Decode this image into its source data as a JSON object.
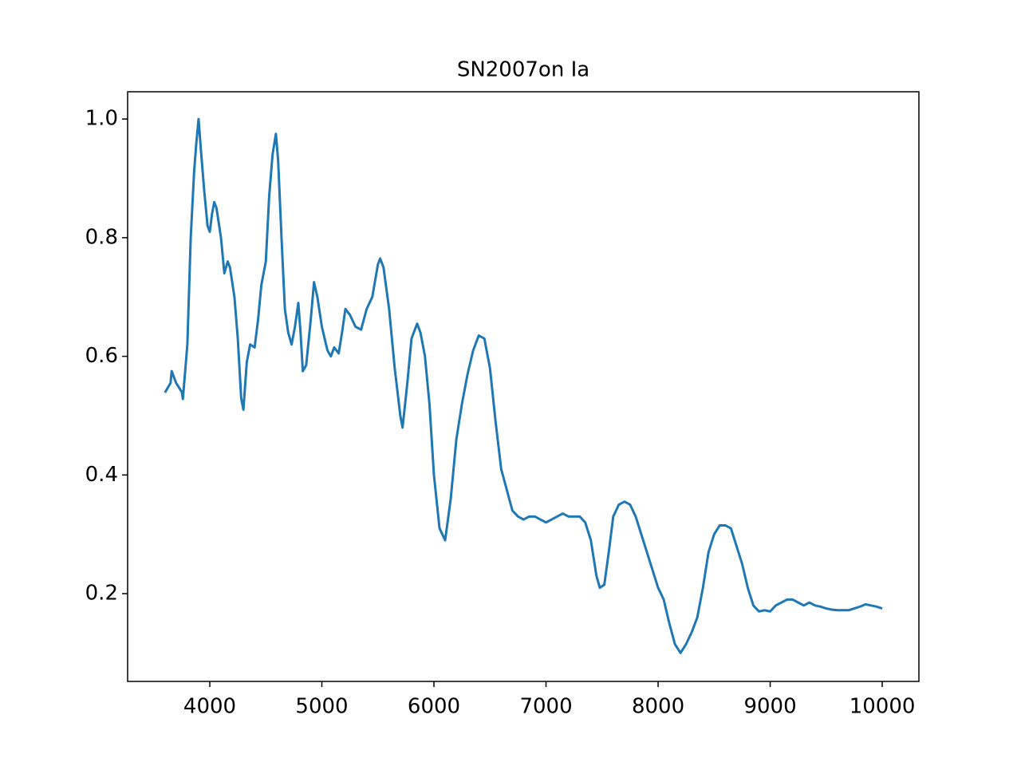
{
  "chart_data": {
    "type": "line",
    "title": "SN2007on Ia",
    "x": [
      3600,
      3650,
      3660,
      3700,
      3750,
      3760,
      3800,
      3830,
      3860,
      3880,
      3900,
      3920,
      3950,
      3980,
      4000,
      4020,
      4040,
      4060,
      4100,
      4130,
      4160,
      4180,
      4220,
      4250,
      4280,
      4300,
      4330,
      4360,
      4400,
      4430,
      4460,
      4500,
      4530,
      4560,
      4590,
      4610,
      4640,
      4670,
      4700,
      4730,
      4760,
      4790,
      4810,
      4830,
      4860,
      4900,
      4930,
      4960,
      5000,
      5050,
      5080,
      5110,
      5150,
      5180,
      5210,
      5250,
      5300,
      5350,
      5400,
      5450,
      5500,
      5520,
      5550,
      5600,
      5650,
      5700,
      5720,
      5760,
      5800,
      5850,
      5880,
      5920,
      5960,
      6000,
      6050,
      6100,
      6150,
      6200,
      6250,
      6300,
      6350,
      6400,
      6450,
      6500,
      6550,
      6600,
      6650,
      6700,
      6750,
      6800,
      6850,
      6900,
      6950,
      7000,
      7050,
      7100,
      7150,
      7200,
      7250,
      7300,
      7350,
      7400,
      7450,
      7480,
      7520,
      7560,
      7600,
      7650,
      7700,
      7750,
      7800,
      7850,
      7900,
      7950,
      8000,
      8050,
      8100,
      8150,
      8200,
      8250,
      8300,
      8350,
      8400,
      8450,
      8500,
      8550,
      8600,
      8650,
      8700,
      8750,
      8800,
      8850,
      8900,
      8950,
      9000,
      9050,
      9100,
      9150,
      9200,
      9250,
      9300,
      9350,
      9400,
      9450,
      9500,
      9550,
      9600,
      9700,
      9800,
      9850,
      9900,
      9950,
      10000
    ],
    "series": [
      {
        "color": "#1f77b4",
        "values": [
          0.539,
          0.555,
          0.575,
          0.555,
          0.54,
          0.528,
          0.62,
          0.8,
          0.91,
          0.96,
          1.0,
          0.95,
          0.88,
          0.82,
          0.81,
          0.84,
          0.86,
          0.85,
          0.8,
          0.74,
          0.76,
          0.75,
          0.7,
          0.63,
          0.53,
          0.51,
          0.59,
          0.62,
          0.615,
          0.66,
          0.72,
          0.76,
          0.87,
          0.94,
          0.975,
          0.93,
          0.8,
          0.68,
          0.64,
          0.62,
          0.65,
          0.69,
          0.64,
          0.575,
          0.585,
          0.66,
          0.725,
          0.7,
          0.65,
          0.61,
          0.6,
          0.615,
          0.605,
          0.64,
          0.68,
          0.67,
          0.65,
          0.645,
          0.68,
          0.7,
          0.755,
          0.765,
          0.75,
          0.68,
          0.58,
          0.5,
          0.48,
          0.55,
          0.63,
          0.655,
          0.64,
          0.6,
          0.52,
          0.4,
          0.31,
          0.29,
          0.36,
          0.46,
          0.52,
          0.57,
          0.61,
          0.635,
          0.63,
          0.58,
          0.49,
          0.41,
          0.375,
          0.34,
          0.33,
          0.325,
          0.33,
          0.33,
          0.325,
          0.32,
          0.325,
          0.33,
          0.335,
          0.33,
          0.33,
          0.33,
          0.32,
          0.29,
          0.23,
          0.21,
          0.215,
          0.27,
          0.33,
          0.35,
          0.355,
          0.35,
          0.33,
          0.3,
          0.27,
          0.24,
          0.21,
          0.19,
          0.15,
          0.115,
          0.1,
          0.115,
          0.135,
          0.16,
          0.21,
          0.27,
          0.3,
          0.315,
          0.315,
          0.31,
          0.28,
          0.25,
          0.21,
          0.18,
          0.17,
          0.172,
          0.17,
          0.18,
          0.185,
          0.19,
          0.19,
          0.185,
          0.18,
          0.185,
          0.18,
          0.178,
          0.175,
          0.173,
          0.172,
          0.172,
          0.178,
          0.182,
          0.18,
          0.178,
          0.175
        ]
      }
    ],
    "xlim": [
      3267,
      10327
    ],
    "ylim": [
      0.052,
      1.046
    ],
    "xticks": [
      4000,
      5000,
      6000,
      7000,
      8000,
      9000,
      10000
    ],
    "yticks": [
      0.2,
      0.4,
      0.6,
      0.8,
      {
        "value": 1,
        "label": "1.0"
      }
    ]
  }
}
